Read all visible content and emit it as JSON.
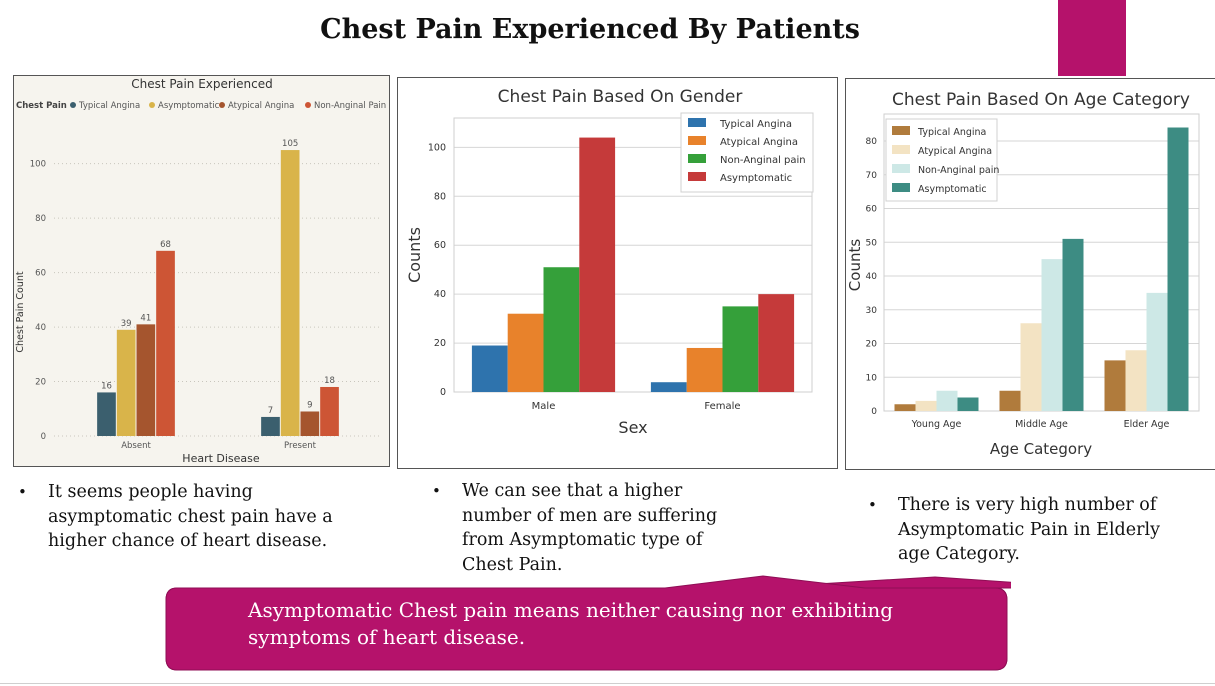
{
  "slide": {
    "title": "Chest Pain Experienced By Patients",
    "accent_color": "#b5126b"
  },
  "bullets": [
    {
      "text": "It seems people having asymptomatic chest pain have a higher chance of heart disease."
    },
    {
      "text": "We can see that a higher number of men are suffering from  Asymptomatic type of Chest Pain."
    },
    {
      "text": "There is very high number of  Asymptomatic Pain in Elderly  age Category."
    }
  ],
  "bullet_symbol": "•",
  "callout": {
    "text": "Asymptomatic Chest pain means neither causing nor exhibiting symptoms of heart disease."
  },
  "chart_data": [
    {
      "type": "bar",
      "title": "Chest Pain Experienced",
      "legend_title": "Chest Pain",
      "legend_position": "top",
      "categories": [
        "Absent",
        "Present"
      ],
      "series": [
        {
          "name": "Typical Angina",
          "color": "#3b5f6e",
          "values": [
            16,
            7
          ]
        },
        {
          "name": "Asymptomatic",
          "color": "#d9b44a",
          "values": [
            39,
            105
          ]
        },
        {
          "name": "Atypical Angina",
          "color": "#a5552e",
          "values": [
            41,
            9
          ]
        },
        {
          "name": "Non-Anginal Pain",
          "color": "#cd5535",
          "values": [
            68,
            18
          ]
        }
      ],
      "xlabel": "Heart Disease",
      "ylabel": "Chest Pain Count",
      "ylim": [
        0,
        112
      ],
      "yticks": [
        0,
        20,
        40,
        60,
        80,
        100
      ],
      "data_labels": true,
      "grid": "dotted horizontal"
    },
    {
      "type": "bar",
      "title": "Chest Pain Based On Gender",
      "legend_position": "top-right",
      "categories": [
        "Male",
        "Female"
      ],
      "series": [
        {
          "name": "Typical Angina",
          "color": "#2e73ad",
          "values": [
            19,
            4
          ]
        },
        {
          "name": "Atypical Angina",
          "color": "#e8822b",
          "values": [
            32,
            18
          ]
        },
        {
          "name": "Non-Anginal pain",
          "color": "#35a03a",
          "values": [
            51,
            35
          ]
        },
        {
          "name": "Asymptomatic",
          "color": "#c53a3a",
          "values": [
            104,
            40
          ]
        }
      ],
      "xlabel": "Sex",
      "ylabel": "Counts",
      "ylim": [
        0,
        112
      ],
      "yticks": [
        0,
        20,
        40,
        60,
        80,
        100
      ],
      "grid": "horizontal"
    },
    {
      "type": "bar",
      "title": "Chest Pain Based On Age Category",
      "legend_position": "top-left",
      "categories": [
        "Young Age",
        "Middle Age",
        "Elder Age"
      ],
      "series": [
        {
          "name": "Typical Angina",
          "color": "#b07b3c",
          "values": [
            2,
            6,
            15
          ]
        },
        {
          "name": "Atypical Angina",
          "color": "#f3e3c3",
          "values": [
            3,
            26,
            18
          ]
        },
        {
          "name": "Non-Anginal pain",
          "color": "#cde8e6",
          "values": [
            6,
            45,
            35
          ]
        },
        {
          "name": "Asymptomatic",
          "color": "#3d8c83",
          "values": [
            4,
            51,
            84
          ]
        }
      ],
      "xlabel": "Age Category",
      "ylabel": "Counts",
      "ylim": [
        0,
        88
      ],
      "yticks": [
        0,
        10,
        20,
        30,
        40,
        50,
        60,
        70,
        80
      ],
      "grid": "horizontal"
    }
  ]
}
